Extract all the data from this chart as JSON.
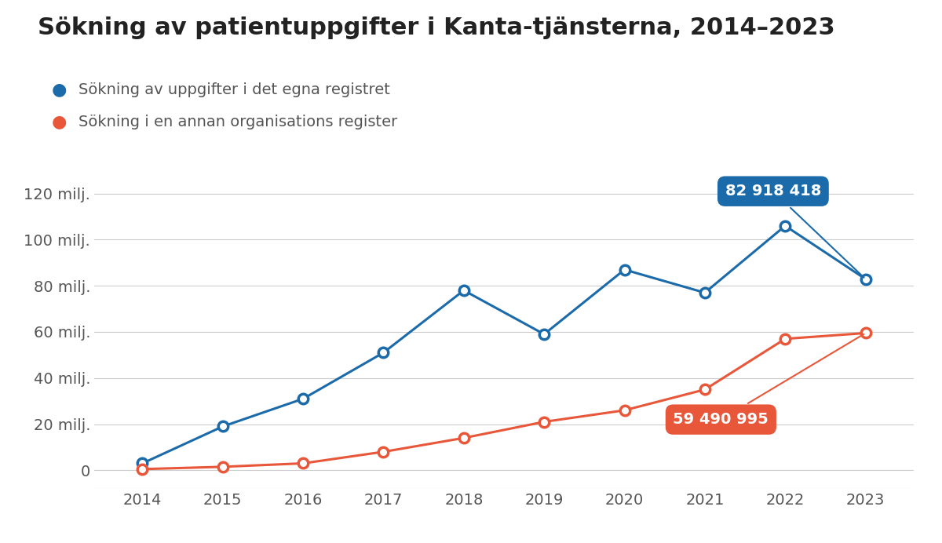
{
  "title": "Sökning av patientuppgifter i Kanta-tjänsterna, 2014–2023",
  "legend_blue": "Sökning av uppgifter i det egna registret",
  "legend_orange": "Sökning i en annan organisations register",
  "years": [
    2014,
    2015,
    2016,
    2017,
    2018,
    2019,
    2020,
    2021,
    2022,
    2023
  ],
  "blue_values": [
    3.0,
    19.0,
    31.0,
    51.0,
    78.0,
    59.0,
    87.0,
    77.0,
    106.0,
    82.918418
  ],
  "orange_values": [
    0.5,
    1.5,
    3.0,
    8.0,
    14.0,
    21.0,
    26.0,
    35.0,
    57.0,
    59.490995
  ],
  "blue_color": "#1b6aaa",
  "orange_color": "#e8573a",
  "blue_label_value": "82 918 418",
  "orange_label_value": "59 490 995",
  "blue_label_bg": "#1b6aaa",
  "orange_label_bg": "#e8573a",
  "ylim_min": -8,
  "ylim_max": 138,
  "yticks": [
    0,
    20,
    40,
    60,
    80,
    100,
    120
  ],
  "ytick_labels": [
    "0",
    "20 milj.",
    "40 milj.",
    "60 milj.",
    "80 milj.",
    "100 milj.",
    "120 milj."
  ],
  "background_color": "#ffffff",
  "title_fontsize": 22,
  "legend_fontsize": 14,
  "tick_fontsize": 14,
  "annotation_fontsize": 14
}
